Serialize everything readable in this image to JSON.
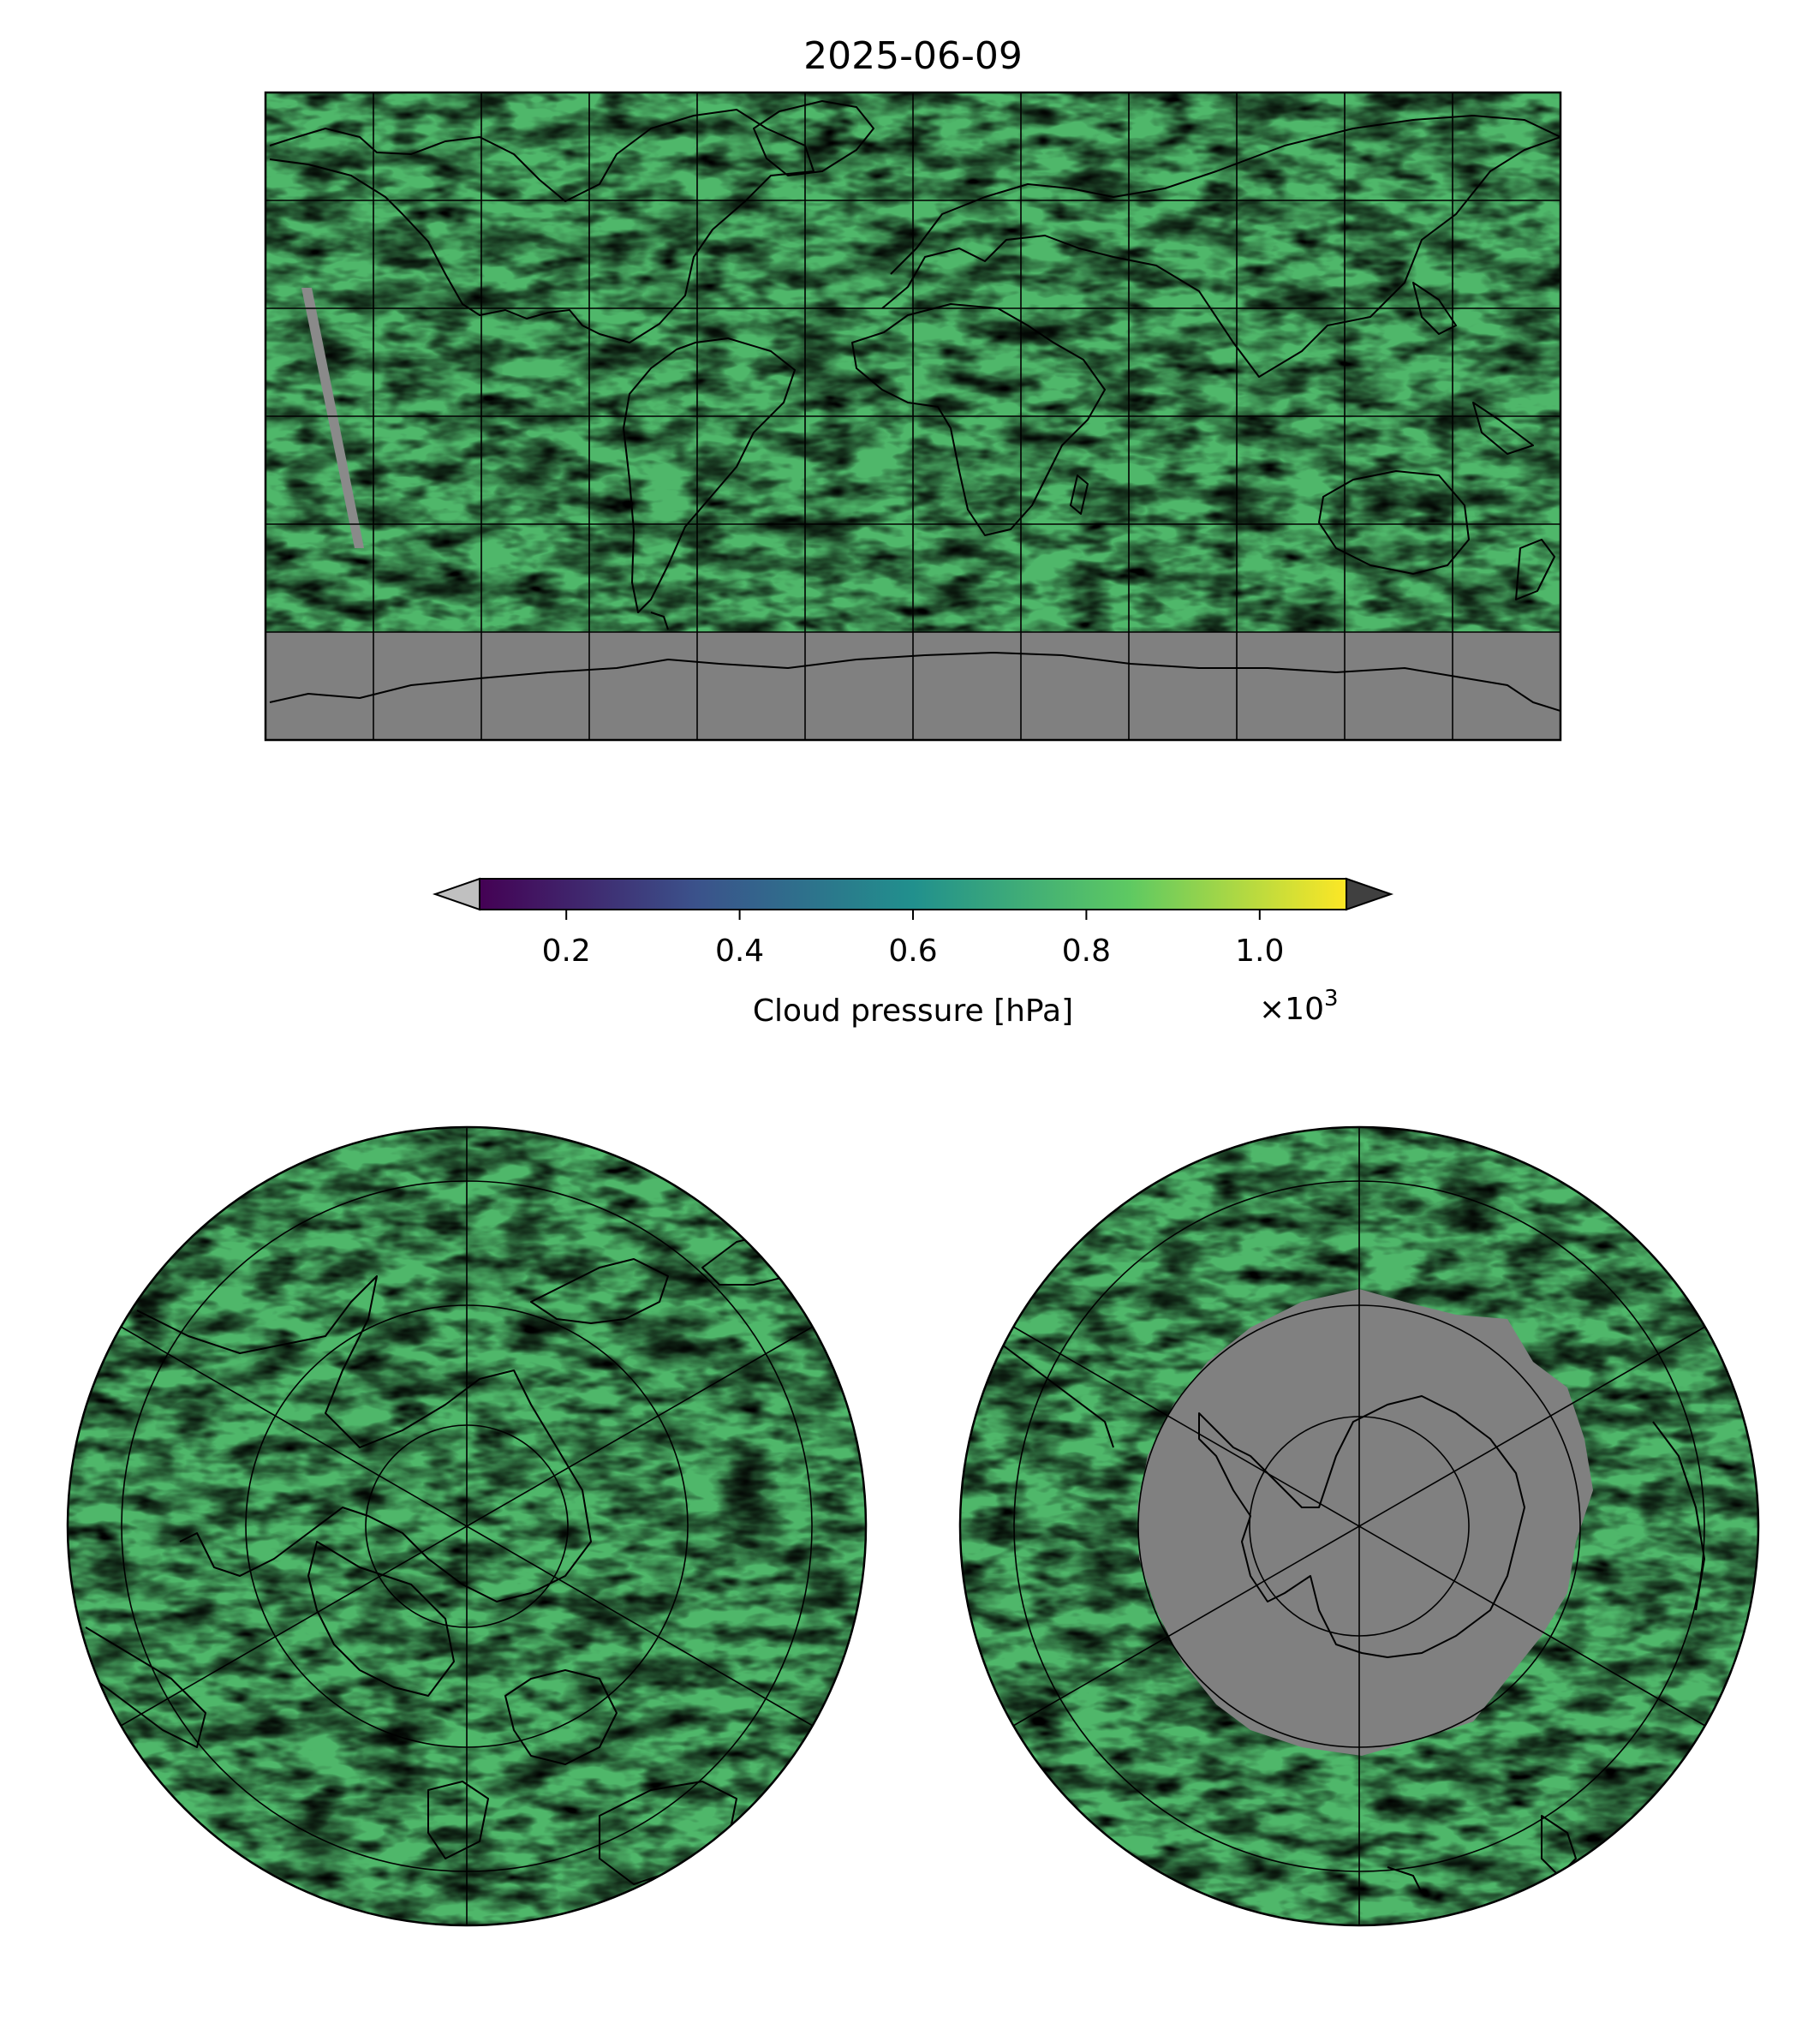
{
  "title": "2025-06-09",
  "colorbar": {
    "label": "Cloud pressure [hPa]",
    "ticks": [
      "0.2",
      "0.4",
      "0.6",
      "0.8",
      "1.0"
    ],
    "tick_values": [
      0.2,
      0.4,
      0.6,
      0.8,
      1.0
    ],
    "range": [
      0.1,
      1.1
    ],
    "offset_prefix": "×10",
    "offset_exp": "3",
    "colormap": "viridis",
    "colors": [
      "#440154",
      "#3b528b",
      "#21908d",
      "#5ec962",
      "#fde725"
    ],
    "under_color": "#c0c0c0",
    "over_color": "#404040",
    "missing_color": "#808080"
  },
  "maps": [
    {
      "projection": "plate-carree",
      "extent_deg": [
        -180,
        180,
        -90,
        90
      ],
      "gridline_step_deg": 30
    },
    {
      "projection": "north-polar-stereographic",
      "gridline_step_deg": 30
    },
    {
      "projection": "south-polar-stereographic",
      "gridline_step_deg": 30
    }
  ]
}
